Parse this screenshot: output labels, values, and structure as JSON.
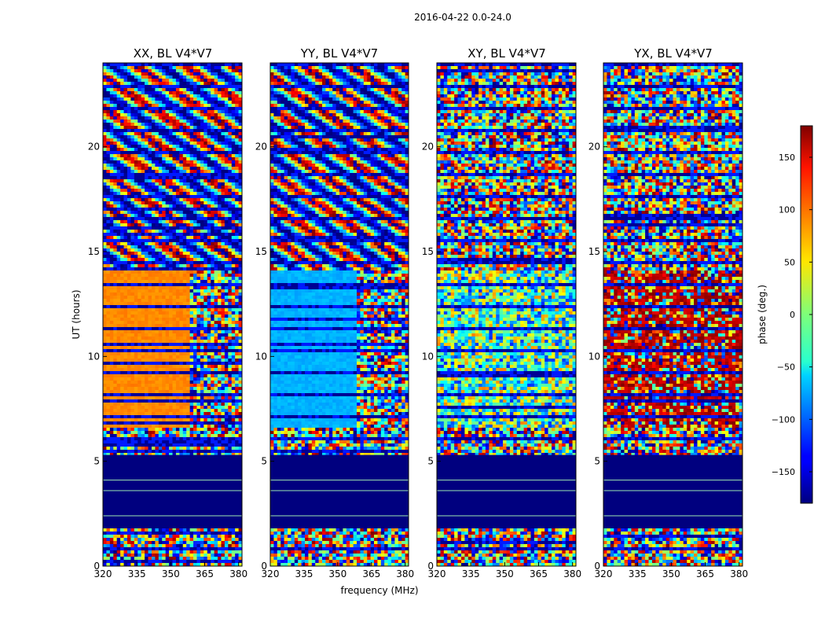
{
  "chart_data": {
    "type": "heatmap",
    "suptitle": "2016-04-22 0.0-24.0",
    "xlabel": "frequency (MHz)",
    "ylabel": "UT (hours)",
    "xlim": [
      320,
      381.5
    ],
    "ylim": [
      0,
      24
    ],
    "xticks": [
      "320",
      "335",
      "350",
      "365",
      "380"
    ],
    "yticks": [
      "0",
      "5",
      "10",
      "15",
      "20"
    ],
    "panels": [
      {
        "title": "XX, BL V4*V7",
        "mode": "xx"
      },
      {
        "title": "YY, BL V4*V7",
        "mode": "yy"
      },
      {
        "title": "XY, BL V4*V7",
        "mode": "xy"
      },
      {
        "title": "YX, BL V4*V7",
        "mode": "yx"
      }
    ],
    "colorbar": {
      "label": "phase (deg.)",
      "range": [
        -180,
        180
      ],
      "ticks": [
        "150",
        "100",
        "50",
        "0",
        "−50",
        "−100",
        "−150"
      ],
      "colormap": "jet"
    },
    "flagged_band_hours": [
      1.8,
      5.3
    ]
  }
}
